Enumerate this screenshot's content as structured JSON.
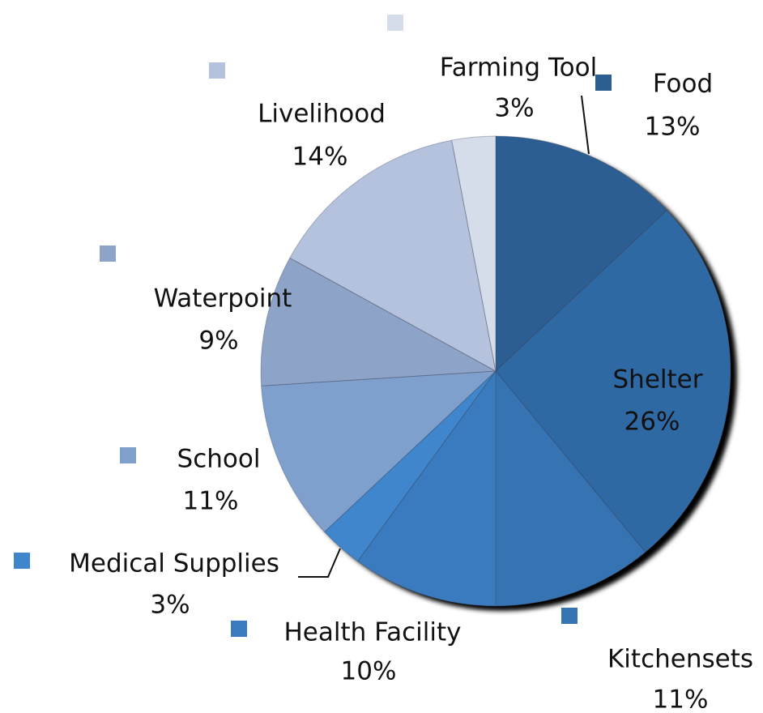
{
  "chart_data": {
    "type": "pie",
    "categories": [
      "Food",
      "Shelter",
      "Kitchensets",
      "Health Facility",
      "Medical Supplies",
      "School",
      "Waterpoint",
      "Livelihood",
      "Farming Tool"
    ],
    "values": [
      13,
      26,
      11,
      10,
      3,
      11,
      9,
      14,
      3
    ],
    "value_labels": [
      "13%",
      "26%",
      "11%",
      "10%",
      "3%",
      "11%",
      "9%",
      "14%",
      "3%"
    ],
    "colors": [
      "#2d5e93",
      "#2f69a4",
      "#3573b2",
      "#3a7bbf",
      "#3f86cd",
      "#7f9fcd",
      "#8da3c7",
      "#b4c2dd",
      "#d5dcea"
    ]
  }
}
